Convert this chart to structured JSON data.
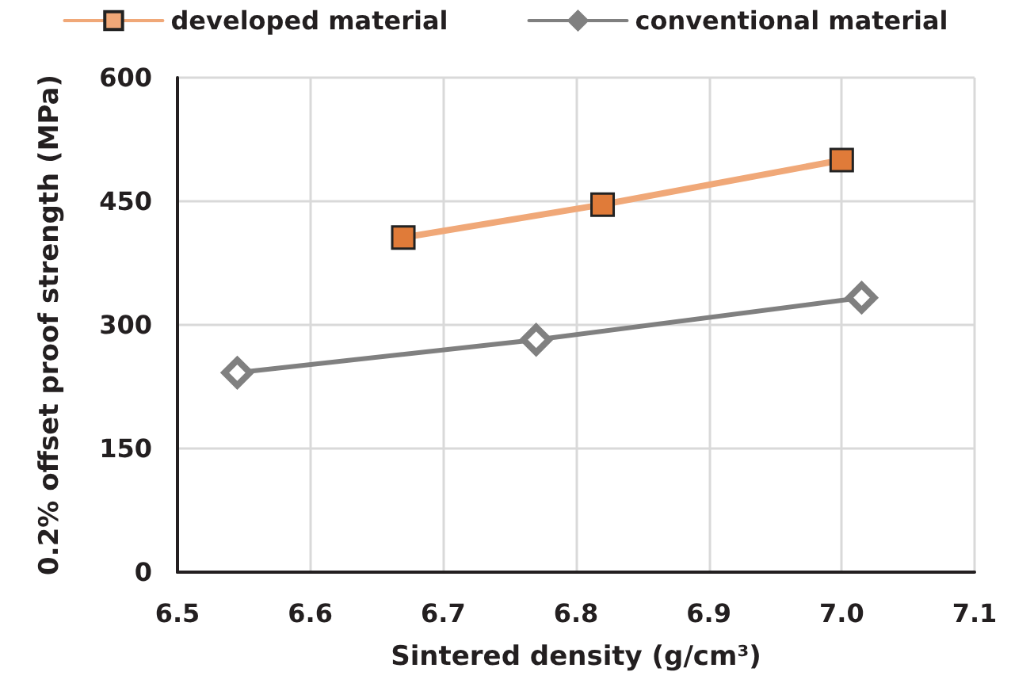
{
  "chart_data": {
    "type": "line",
    "xlabel": "Sintered density (g/cm³)",
    "ylabel": "0.2% offset proof strength (MPa)",
    "xlim": [
      6.5,
      7.1
    ],
    "xticks": [
      {
        "value": 6.5,
        "label": "6.5"
      },
      {
        "value": 6.6,
        "label": "6.6"
      },
      {
        "value": 6.7,
        "label": "6.7"
      },
      {
        "value": 6.8,
        "label": "6.8"
      },
      {
        "value": 6.9,
        "label": "6.9"
      },
      {
        "value": 7,
        "label": "7.0"
      },
      {
        "value": 7.1,
        "label": "7.1"
      }
    ],
    "ylim": [
      0,
      600
    ],
    "yticks": [
      0,
      150,
      300,
      450,
      600
    ],
    "grid": true,
    "legend": "top",
    "series": [
      {
        "name": "developed material",
        "color": "#f0a878",
        "marker": "square",
        "x": [
          6.67,
          6.82,
          7.0
        ],
        "values": [
          406,
          446,
          500
        ]
      },
      {
        "name": "conventional material",
        "color": "#808080",
        "marker": "diamond",
        "x": [
          6.545,
          6.77,
          7.015
        ],
        "values": [
          242,
          282,
          333
        ]
      }
    ]
  }
}
